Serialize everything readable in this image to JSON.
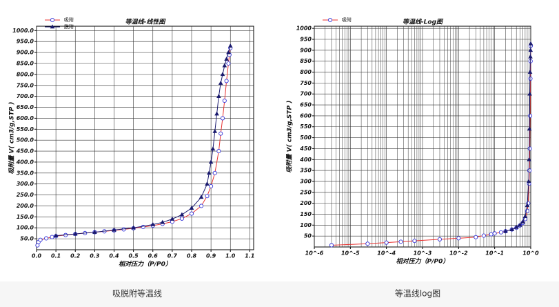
{
  "chart_data": [
    {
      "type": "line",
      "title": "等温线-线性图",
      "x_label": "相对压力（P/P0）",
      "y_label": "吸附量 V( cm3/g,STP )",
      "xlim": [
        0,
        1.12
      ],
      "ylim": [
        0,
        1020
      ],
      "xticks": [
        {
          "value": 0,
          "label": "0.0"
        },
        0.1,
        0.2,
        0.3,
        0.4,
        0.5,
        0.6,
        0.7,
        0.8,
        0.9,
        {
          "value": 1,
          "label": "1.0"
        },
        1.1
      ],
      "yticks": [
        {
          "value": 50,
          "label": "50.0"
        },
        {
          "value": 100,
          "label": "100.0"
        },
        {
          "value": 150,
          "label": "150.0"
        },
        {
          "value": 200,
          "label": "200.0"
        },
        {
          "value": 250,
          "label": "250.0"
        },
        {
          "value": 300,
          "label": "300.0"
        },
        {
          "value": 350,
          "label": "350.0"
        },
        {
          "value": 400,
          "label": "400.0"
        },
        {
          "value": 450,
          "label": "450.0"
        },
        {
          "value": 500,
          "label": "500.0"
        },
        {
          "value": 550,
          "label": "550.0"
        },
        {
          "value": 600,
          "label": "600.0"
        },
        {
          "value": 650,
          "label": "650.0"
        },
        {
          "value": 700,
          "label": "700.0"
        },
        {
          "value": 750,
          "label": "750.0"
        },
        {
          "value": 800,
          "label": "800.0"
        },
        {
          "value": 850,
          "label": "850.0"
        },
        {
          "value": 900,
          "label": "900.0"
        },
        {
          "value": 950,
          "label": "950.0"
        },
        {
          "value": 1000,
          "label": "1000.0"
        }
      ],
      "grid": true,
      "log_x": false,
      "series": [
        {
          "name": "吸附",
          "color": "#e8312f",
          "marker": "circle",
          "marker_color": "#3535d8",
          "x": [
            0.005,
            0.01,
            0.02,
            0.05,
            0.08,
            0.1,
            0.15,
            0.2,
            0.25,
            0.3,
            0.35,
            0.4,
            0.45,
            0.5,
            0.55,
            0.6,
            0.65,
            0.7,
            0.75,
            0.8,
            0.85,
            0.88,
            0.9,
            0.92,
            0.94,
            0.95,
            0.96,
            0.97,
            0.98,
            0.99,
            0.995,
            1.0
          ],
          "values": [
            20,
            35,
            45,
            52,
            58,
            62,
            67,
            72,
            76,
            80,
            84,
            88,
            93,
            98,
            104,
            110,
            118,
            128,
            142,
            165,
            200,
            245,
            290,
            350,
            450,
            530,
            600,
            680,
            770,
            850,
            890,
            920
          ]
        },
        {
          "name": "脱附",
          "color": "#1a1a6e",
          "marker": "triangle",
          "marker_color": "#1a1a6e",
          "x": [
            1.0,
            0.99,
            0.98,
            0.97,
            0.96,
            0.95,
            0.94,
            0.93,
            0.92,
            0.91,
            0.9,
            0.89,
            0.88,
            0.85,
            0.8,
            0.75,
            0.7,
            0.65,
            0.6,
            0.5,
            0.4,
            0.3,
            0.2,
            0.1
          ],
          "values": [
            930,
            900,
            870,
            840,
            800,
            760,
            700,
            620,
            540,
            460,
            400,
            350,
            300,
            240,
            190,
            160,
            140,
            125,
            115,
            100,
            90,
            80,
            72,
            64
          ]
        }
      ]
    },
    {
      "type": "line",
      "title": "等温线-Log图",
      "x_label": "相对压力（P/P0）",
      "y_label": "吸附量 V( cm3/g,STP )",
      "xlim": [
        1e-06,
        1
      ],
      "ylim": [
        0,
        1010
      ],
      "log_x": true,
      "xticks": [
        {
          "value": 1e-06,
          "label": "10^-6"
        },
        {
          "value": 1e-05,
          "label": "10^-5"
        },
        {
          "value": 0.0001,
          "label": "10^-4"
        },
        {
          "value": 0.001,
          "label": "10^-3"
        },
        {
          "value": 0.01,
          "label": "10^-2"
        },
        {
          "value": 0.1,
          "label": "10^-1"
        },
        {
          "value": 1,
          "label": "10^0"
        }
      ],
      "xminorticks": [
        2e-06,
        3e-06,
        4e-06,
        5e-06,
        6e-06,
        7e-06,
        8e-06,
        9e-06,
        2e-05,
        3e-05,
        4e-05,
        5e-05,
        6e-05,
        7e-05,
        8e-05,
        9e-05,
        0.0002,
        0.0003,
        0.0004,
        0.0005,
        0.0006,
        0.0007,
        0.0008,
        0.0009,
        0.002,
        0.003,
        0.004,
        0.005,
        0.006,
        0.007,
        0.008,
        0.009,
        0.02,
        0.03,
        0.04,
        0.05,
        0.06,
        0.07,
        0.08,
        0.09,
        0.2,
        0.3,
        0.4,
        0.5,
        0.6,
        0.7,
        0.8,
        0.9
      ],
      "yticks": [
        50,
        100,
        150,
        200,
        250,
        300,
        350,
        400,
        450,
        500,
        550,
        600,
        650,
        700,
        750,
        800,
        850,
        900,
        950,
        1000
      ],
      "grid": true,
      "series": [
        {
          "name": "吸附",
          "color": "#e8312f",
          "marker": "circle",
          "marker_color": "#3535d8",
          "x": [
            3e-06,
            3e-05,
            0.0001,
            0.00025,
            0.0006,
            0.003,
            0.01,
            0.03,
            0.05,
            0.08,
            0.1,
            0.15,
            0.2,
            0.3,
            0.4,
            0.5,
            0.6,
            0.7,
            0.8,
            0.85,
            0.9,
            0.92,
            0.94,
            0.96,
            0.98,
            0.99,
            1.0
          ],
          "values": [
            8,
            15,
            20,
            24,
            28,
            35,
            40,
            45,
            52,
            58,
            62,
            67,
            72,
            80,
            88,
            98,
            110,
            128,
            165,
            200,
            290,
            350,
            450,
            600,
            770,
            850,
            920
          ]
        },
        {
          "color": "#1a1a6e",
          "marker": "triangle",
          "marker_color": "#1a1a6e",
          "x": [
            1.0,
            0.99,
            0.98,
            0.96,
            0.94,
            0.92,
            0.9,
            0.88,
            0.8,
            0.7,
            0.6,
            0.5,
            0.4,
            0.3,
            0.2
          ],
          "values": [
            930,
            900,
            870,
            800,
            700,
            540,
            400,
            300,
            190,
            140,
            115,
            100,
            90,
            80,
            72
          ]
        }
      ]
    }
  ],
  "captions": [
    "吸脱附等温线",
    "等温线log图"
  ]
}
